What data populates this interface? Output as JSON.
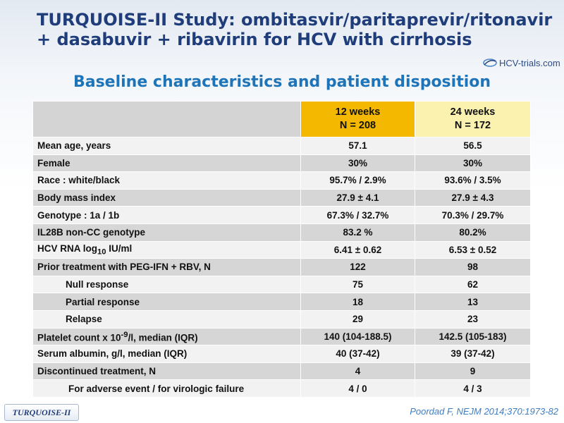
{
  "header": {
    "title_line1": "TURQUOISE-II Study: ombitasvir/paritaprevir/ritonavir",
    "title_line2": "+ dasabuvir + ribavirin for HCV with cirrhosis",
    "logo_text": "HCV-trials.com",
    "subtitle": "Baseline characteristics and patient disposition"
  },
  "table": {
    "col12": {
      "line1": "12 weeks",
      "line2": "N = 208"
    },
    "col24": {
      "line1": "24 weeks",
      "line2": "N = 172"
    },
    "rows": [
      {
        "label": "Mean age, years",
        "v12": "57.1",
        "v24": "56.5"
      },
      {
        "label": "Female",
        "v12": "30%",
        "v24": "30%"
      },
      {
        "label": "Race : white/black",
        "v12": "95.7% / 2.9%",
        "v24": "93.6% / 3.5%"
      },
      {
        "label": "Body mass index",
        "v12": "27.9 ± 4.1",
        "v24": "27.9 ± 4.3"
      },
      {
        "label": "Genotype : 1a / 1b",
        "v12": "67.3% / 32.7%",
        "v24": "70.3% / 29.7%"
      },
      {
        "label": "IL28B non-CC genotype",
        "v12": "83.2 %",
        "v24": "80.2%"
      },
      {
        "label_pre": "HCV RNA log",
        "label_sub": "10",
        "label_post": " IU/ml",
        "v12": "6.41 ± 0.62",
        "v24": "6.53 ± 0.52"
      },
      {
        "label": "Prior treatment with PEG-IFN + RBV, N",
        "v12": "122",
        "v24": "98"
      },
      {
        "label": "Null response",
        "v12": "75",
        "v24": "62"
      },
      {
        "label": "Partial response",
        "v12": "18",
        "v24": "13"
      },
      {
        "label": "Relapse",
        "v12": "29",
        "v24": "23"
      },
      {
        "label_pre": "Platelet count x 10",
        "label_sup": "-9",
        "label_post": "/l, median (IQR)",
        "v12": "140 (104-188.5)",
        "v24": "142.5 (105-183)"
      },
      {
        "label": "Serum albumin, g/l, median (IQR)",
        "v12": "40 (37-42)",
        "v24": "39 (37-42)"
      },
      {
        "label": "Discontinued treatment, N",
        "v12": "4",
        "v24": "9"
      },
      {
        "label": "For adverse event / for virologic failure",
        "v12": "4 / 0",
        "v24": "4 / 3"
      }
    ]
  },
  "footer": {
    "study_tag": "TURQUOISE-II",
    "citation": "Poordad F, NEJM 2014;370:1973-82"
  },
  "colors": {
    "title": "#1f3d7a",
    "subtitle": "#1e74b8",
    "col12_header": "#f4b800",
    "col24_header": "#fbf2b0",
    "row_light": "#f2f2f2",
    "row_dark": "#d6d6d6"
  }
}
